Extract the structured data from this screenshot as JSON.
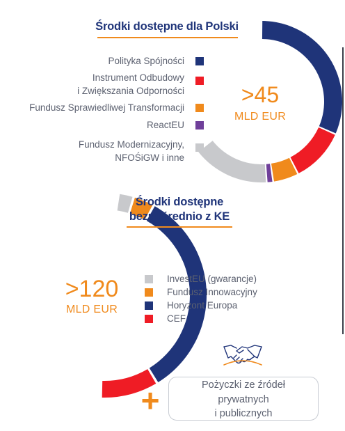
{
  "chart_data": [
    {
      "type": "pie",
      "title": "Środki dostępne dla Polski",
      "center_value": ">45",
      "center_unit": "MLD EUR",
      "labels": [
        "Polityka Spójności",
        "Instrument Odbudowy i Zwiększania Odporności",
        "Fundusz Sprawiedliwej Transformacji",
        "ReactEU",
        "Fundusz Modernizacyjny, NFOŚiGW i inne"
      ],
      "legend_lines": [
        [
          "Polityka Spójności"
        ],
        [
          "Instrument Odbudowy",
          "i Zwiększania Odporności"
        ],
        [
          "Fundusz Sprawiedliwej Transformacji"
        ],
        [
          "ReactEU"
        ],
        [
          "Fundusz Modernizacyjny,",
          "NFOŚiGW i inne"
        ]
      ],
      "values": [
        49,
        17,
        8,
        2,
        24
      ],
      "colors": [
        "#1f3479",
        "#ef1c25",
        "#f08a1c",
        "#6f3f9a",
        "#c8c9cc"
      ]
    },
    {
      "type": "pie",
      "title": "Środki dostępne bezpośrednio z KE",
      "title_lines": [
        "Środki dostępne",
        "bezpośrednio z KE"
      ],
      "center_value": ">120",
      "center_unit": "MLD EUR",
      "labels": [
        "InvestEU (gwarancje)",
        "Fundusz Innowacyjny",
        "Horyzont Europa",
        "CEF"
      ],
      "values": [
        5,
        7,
        69,
        19
      ],
      "colors": [
        "#c8c9cc",
        "#f08a1c",
        "#1f3479",
        "#ef1c25"
      ]
    }
  ],
  "loans": {
    "plus": "+",
    "lines": [
      "Pożyczki ze źródeł",
      "prywatnych",
      "i publicznych"
    ],
    "icon": "handshake-icon"
  }
}
